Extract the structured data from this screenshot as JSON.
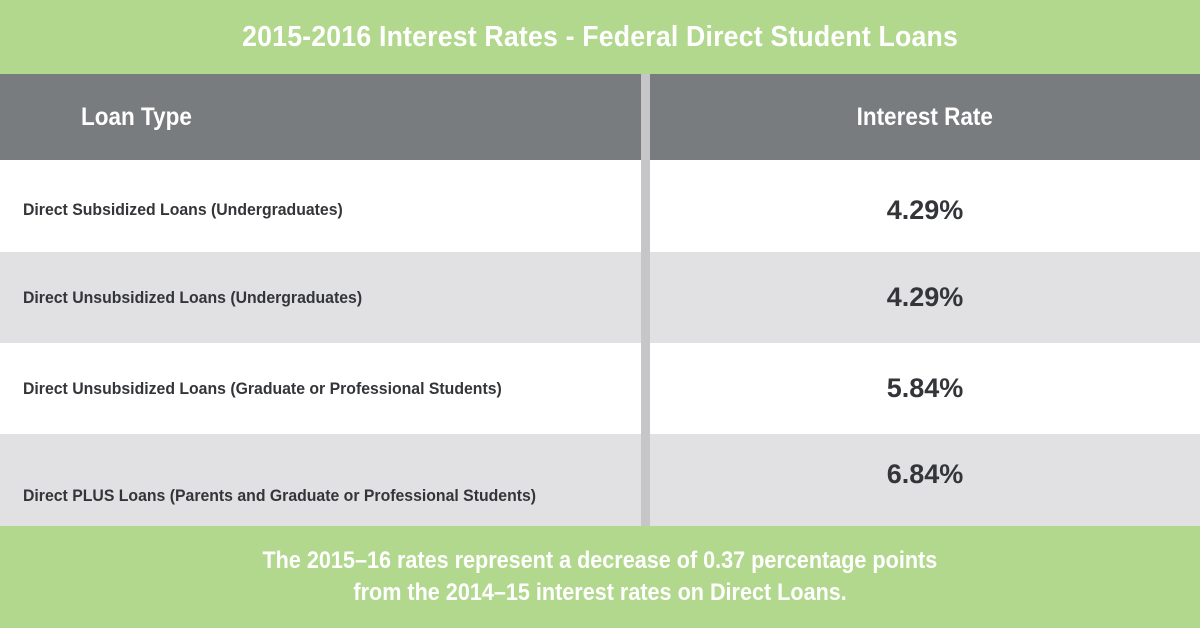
{
  "title": "2015-2016 Interest Rates - Federal Direct Student Loans",
  "table": {
    "headers": {
      "loan_type": "Loan Type",
      "interest_rate": "Interest Rate"
    },
    "rows": [
      {
        "loan_type": "Direct Subsidized Loans (Undergraduates)",
        "rate": "4.29%"
      },
      {
        "loan_type": "Direct Unsubsidized Loans (Undergraduates)",
        "rate": "4.29%"
      },
      {
        "loan_type": "Direct Unsubsidized Loans (Graduate or Professional Students)",
        "rate": "5.84%"
      },
      {
        "loan_type": "Direct PLUS Loans (Parents and Graduate or Professional Students)",
        "rate": "6.84%"
      }
    ]
  },
  "footer": {
    "line1": "The 2015–16 rates represent a decrease of 0.37 percentage points",
    "line2": "from the 2014–15 interest rates on Direct Loans."
  },
  "colors": {
    "green_band": "#b2d88e",
    "header_gray": "#787c7e",
    "row_alt": "#e1e1e3",
    "divider": "#c6c6c8",
    "text_dark": "#333538"
  }
}
